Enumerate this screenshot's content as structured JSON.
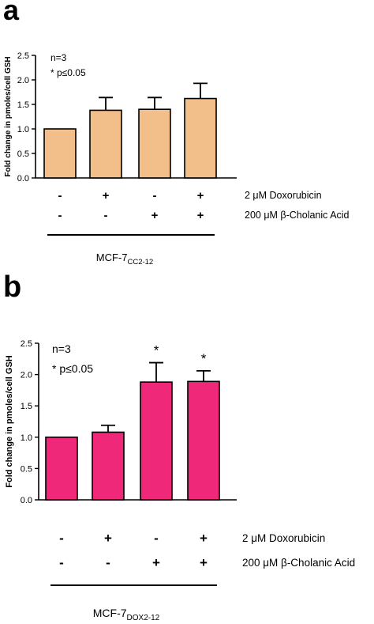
{
  "figure": {
    "panels": [
      {
        "letter": "a",
        "ylabel": "Fold change in pmoles/cell GSH",
        "yticks": [
          "0.0",
          "0.5",
          "1.0",
          "1.5",
          "2.0",
          "2.5"
        ],
        "notes": [
          "n=3",
          "* p≤0.05"
        ],
        "row1_signs": [
          "-",
          "+",
          "-",
          "+"
        ],
        "row2_signs": [
          "-",
          "-",
          "+",
          "+"
        ],
        "row1_label": "2 μM Doxorubicin",
        "row2_label": "200 μM β-Cholanic Acid",
        "group_main": "MCF-7",
        "group_sub": "CC2-12",
        "significance": [
          "",
          "",
          "",
          ""
        ],
        "bar_color": "#F2BF8A"
      },
      {
        "letter": "b",
        "ylabel": "Fold change in pmoles/cell GSH",
        "yticks": [
          "0.0",
          "0.5",
          "1.0",
          "1.5",
          "2.0",
          "2.5"
        ],
        "notes": [
          "n=3",
          "* p≤0.05"
        ],
        "row1_signs": [
          "-",
          "+",
          "-",
          "+"
        ],
        "row2_signs": [
          "-",
          "-",
          "+",
          "+"
        ],
        "row1_label": "2 μM Doxorubicin",
        "row2_label": "200 μM β-Cholanic Acid",
        "group_main": "MCF-7",
        "group_sub": "DOX2-12",
        "significance": [
          "",
          "",
          "*",
          "*"
        ],
        "bar_color": "#F0287A"
      }
    ]
  },
  "chart_data": [
    {
      "type": "bar",
      "categories": [
        "-/-",
        "+/-",
        "-/+",
        "+/+"
      ],
      "values": [
        1.0,
        1.38,
        1.4,
        1.62
      ],
      "errors": [
        0.0,
        0.26,
        0.24,
        0.31
      ],
      "ylabel": "Fold change in pmoles/cell GSH",
      "ylim": [
        0,
        2.5
      ],
      "grid": false,
      "bar_color": "#F2BF8A"
    },
    {
      "type": "bar",
      "categories": [
        "-/-",
        "+/-",
        "-/+",
        "+/+"
      ],
      "values": [
        1.0,
        1.08,
        1.88,
        1.89
      ],
      "errors": [
        0.0,
        0.11,
        0.31,
        0.17
      ],
      "significance": [
        "",
        "",
        "*",
        "*"
      ],
      "ylabel": "Fold change in pmoles/cell GSH",
      "ylim": [
        0,
        2.5
      ],
      "grid": false,
      "bar_color": "#F0287A"
    }
  ]
}
